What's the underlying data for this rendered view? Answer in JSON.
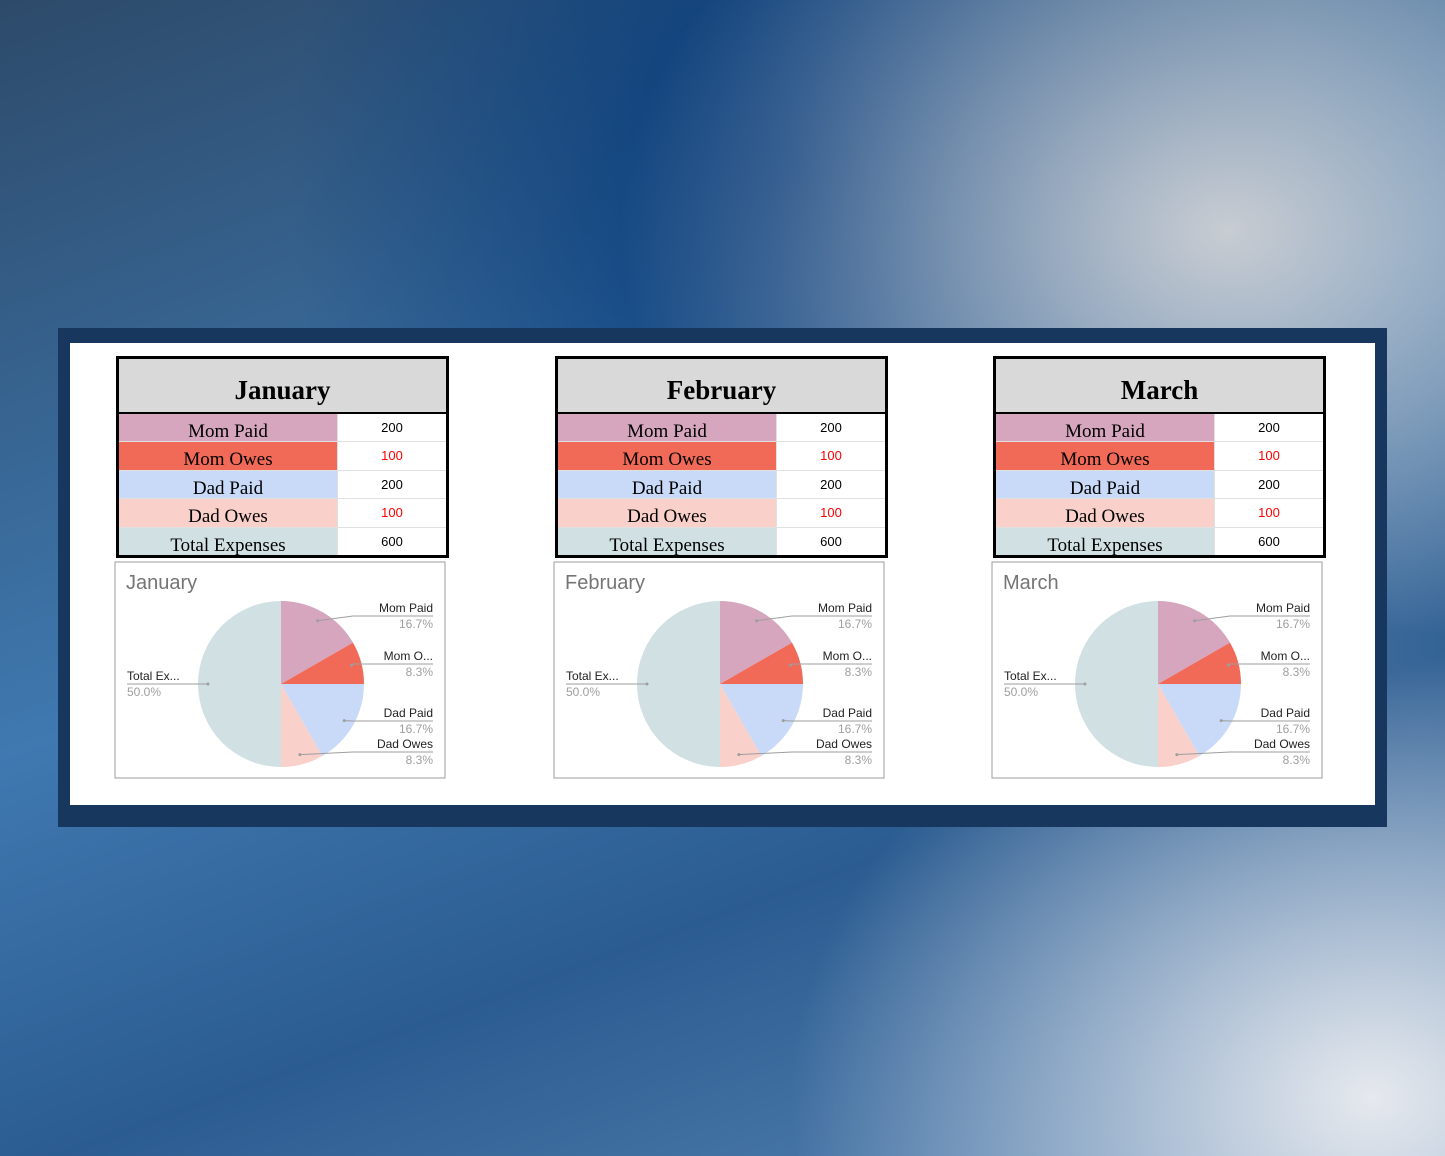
{
  "tables": [
    {
      "title": "January",
      "rows": [
        [
          "Mom Paid",
          200
        ],
        [
          "Mom Owes",
          100
        ],
        [
          "Dad Paid",
          200
        ],
        [
          "Dad Owes",
          100
        ],
        [
          "Total Expenses",
          600
        ]
      ],
      "row_colors": [
        "#d5a6bd",
        "#f06a57",
        "#c9daf8",
        "#f9d0ca",
        "#d0e0e3"
      ],
      "value_colors": [
        "#000000",
        "#ff0000",
        "#000000",
        "#ff0000",
        "#000000"
      ]
    },
    {
      "title": "February",
      "rows": [
        [
          "Mom Paid",
          200
        ],
        [
          "Mom Owes",
          100
        ],
        [
          "Dad Paid",
          200
        ],
        [
          "Dad Owes",
          100
        ],
        [
          "Total Expenses",
          600
        ]
      ],
      "row_colors": [
        "#d5a6bd",
        "#f06a57",
        "#c9daf8",
        "#f9d0ca",
        "#d0e0e3"
      ],
      "value_colors": [
        "#000000",
        "#ff0000",
        "#000000",
        "#ff0000",
        "#000000"
      ]
    },
    {
      "title": "March",
      "rows": [
        [
          "Mom Paid",
          200
        ],
        [
          "Mom Owes",
          100
        ],
        [
          "Dad Paid",
          200
        ],
        [
          "Dad Owes",
          100
        ],
        [
          "Total Expenses",
          600
        ]
      ],
      "row_colors": [
        "#d5a6bd",
        "#f06a57",
        "#c9daf8",
        "#f9d0ca",
        "#d0e0e3"
      ],
      "value_colors": [
        "#000000",
        "#ff0000",
        "#000000",
        "#ff0000",
        "#000000"
      ]
    }
  ],
  "chart_data": [
    {
      "type": "pie",
      "title": "January",
      "categories": [
        "Mom Paid",
        "Mom O...",
        "Dad Paid",
        "Dad Owes",
        "Total Ex..."
      ],
      "values": [
        16.7,
        8.3,
        16.7,
        8.3,
        50.0
      ],
      "value_labels": [
        "16.7%",
        "8.3%",
        "16.7%",
        "8.3%",
        "50.0%"
      ],
      "colors": [
        "#d5a6bd",
        "#f06a57",
        "#c9daf8",
        "#f9d0ca",
        "#d0e0e3"
      ]
    },
    {
      "type": "pie",
      "title": "February",
      "categories": [
        "Mom Paid",
        "Mom O...",
        "Dad Paid",
        "Dad Owes",
        "Total Ex..."
      ],
      "values": [
        16.7,
        8.3,
        16.7,
        8.3,
        50.0
      ],
      "value_labels": [
        "16.7%",
        "8.3%",
        "16.7%",
        "8.3%",
        "50.0%"
      ],
      "colors": [
        "#d5a6bd",
        "#f06a57",
        "#c9daf8",
        "#f9d0ca",
        "#d0e0e3"
      ]
    },
    {
      "type": "pie",
      "title": "March",
      "categories": [
        "Mom Paid",
        "Mom O...",
        "Dad Paid",
        "Dad Owes",
        "Total Ex..."
      ],
      "values": [
        16.7,
        8.3,
        16.7,
        8.3,
        50.0
      ],
      "value_labels": [
        "16.7%",
        "8.3%",
        "16.7%",
        "8.3%",
        "50.0%"
      ],
      "colors": [
        "#d5a6bd",
        "#f06a57",
        "#c9daf8",
        "#f9d0ca",
        "#d0e0e3"
      ]
    }
  ]
}
